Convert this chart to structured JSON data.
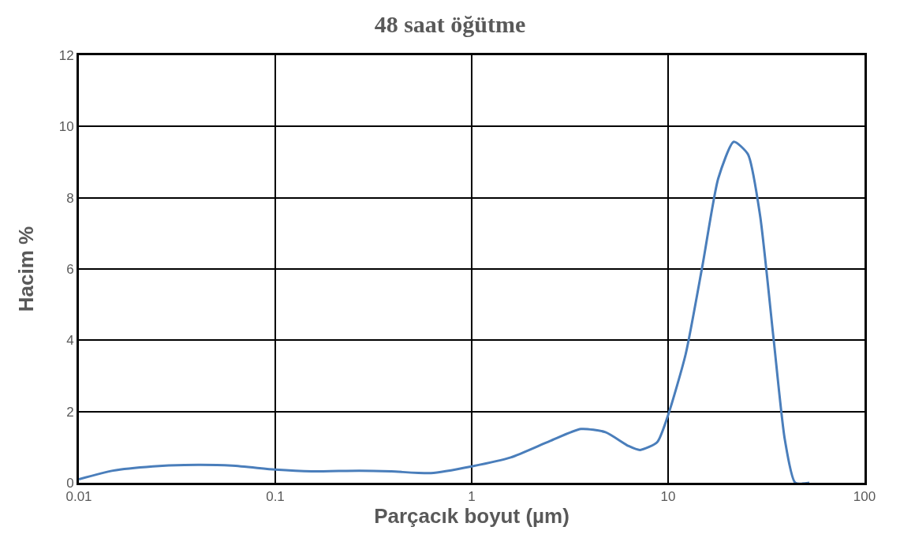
{
  "chart_data": {
    "type": "line",
    "title": "48 saat öğütme",
    "xlabel": "Parçacık boyut (µm)",
    "ylabel": "Hacim %",
    "x": [
      0.01,
      0.0149,
      0.0238,
      0.0345,
      0.0603,
      0.1,
      0.153,
      0.268,
      0.39,
      0.62,
      1,
      1.58,
      2.5,
      3.6,
      4.8,
      6.3,
      7.2,
      8.8,
      10,
      12.3,
      15,
      18,
      21.6,
      25.5,
      29.4,
      34.4,
      39.3,
      44.4,
      52.4
    ],
    "series": [
      {
        "color": "#4a7ebb",
        "values": [
          0.1,
          0.34,
          0.46,
          0.5,
          0.48,
          0.37,
          0.32,
          0.34,
          0.32,
          0.27,
          0.46,
          0.71,
          1.17,
          1.51,
          1.42,
          1.03,
          0.92,
          1.14,
          1.9,
          3.62,
          6.13,
          8.54,
          9.57,
          9.22,
          7.5,
          4.07,
          1.21,
          0,
          0
        ]
      }
    ],
    "log": "x",
    "xlim": [
      0.01,
      100
    ],
    "xticks": [
      0.01,
      0.1,
      1,
      10,
      100
    ],
    "ylim": [
      0,
      12
    ],
    "yticks": [
      0,
      2,
      4,
      6,
      8,
      10,
      12
    ],
    "grid": true,
    "legend": false,
    "marker": "none",
    "line_style": "solid"
  }
}
